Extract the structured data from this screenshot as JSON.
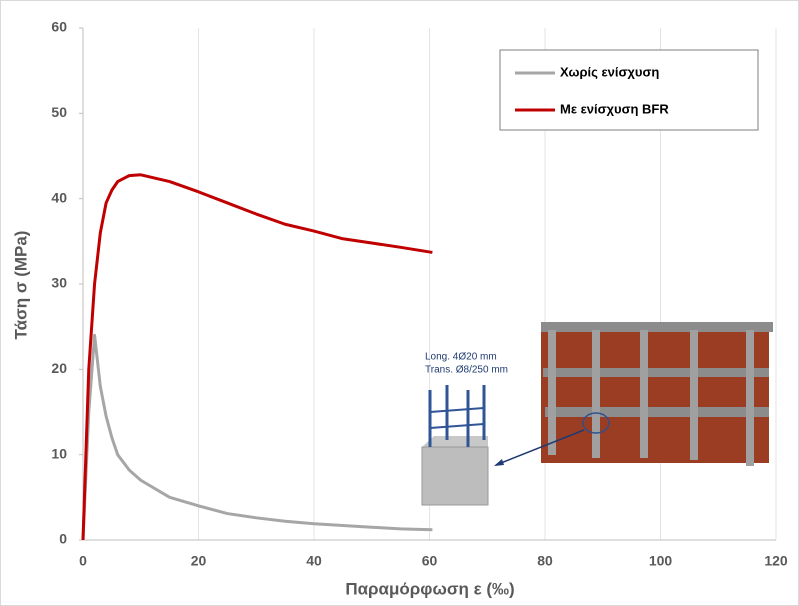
{
  "chart_data": {
    "type": "line",
    "x_label": "Παραμόρφωση ε (‰)",
    "y_label": "Τάση σ (MPa)",
    "x": [
      0,
      1,
      2,
      3,
      4,
      5,
      6,
      8,
      10,
      15,
      20,
      25,
      30,
      35,
      40,
      45,
      50,
      55,
      60.5
    ],
    "series": [
      {
        "name": "Χωρίς ενίσχυση",
        "color": "#a6a6a6",
        "values": [
          0,
          15,
          24,
          18,
          14.5,
          12,
          10,
          8.2,
          7,
          5,
          4,
          3.1,
          2.6,
          2.2,
          1.9,
          1.7,
          1.5,
          1.3,
          1.2
        ]
      },
      {
        "name": "Με ενίσχυση BFR",
        "color": "#c00000",
        "values": [
          0,
          20,
          30,
          36,
          39.5,
          41,
          42,
          42.7,
          42.8,
          42,
          40.8,
          39.5,
          38.2,
          37,
          36.2,
          35.3,
          34.8,
          34.3,
          33.7
        ]
      }
    ],
    "xlim": [
      0,
      120
    ],
    "xticks": [
      0,
      20,
      40,
      60,
      80,
      100,
      120
    ],
    "ylim": [
      0,
      60
    ],
    "yticks": [
      0,
      10,
      20,
      30,
      40,
      50,
      60
    ],
    "grid": true,
    "legend": "upper right",
    "annotations": [
      "Long. 4Ø20 mm",
      "Trans. Ø8/250 mm"
    ]
  }
}
